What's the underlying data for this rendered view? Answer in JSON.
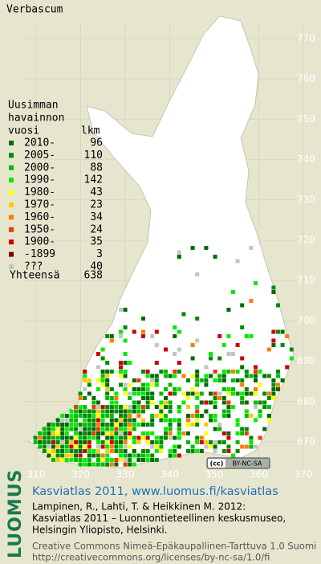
{
  "title": "Verbascum",
  "legend": {
    "heading": [
      "Uusimman",
      "havainnon",
      "vuosi"
    ],
    "count_header": "lkm",
    "items": [
      {
        "label": "2010-",
        "count": "96",
        "color": "#006a00"
      },
      {
        "label": "2005-",
        "count": "110",
        "color": "#008c00"
      },
      {
        "label": "2000-",
        "count": "88",
        "color": "#00bc00"
      },
      {
        "label": "1990-",
        "count": "142",
        "color": "#00ec00"
      },
      {
        "label": "1980-",
        "count": "43",
        "color": "#ffff00"
      },
      {
        "label": "1970-",
        "count": "23",
        "color": "#ffc800"
      },
      {
        "label": "1960-",
        "count": "34",
        "color": "#ff7c00"
      },
      {
        "label": "1950-",
        "count": "24",
        "color": "#e83c00"
      },
      {
        "label": "1900-",
        "count": "35",
        "color": "#cc0000"
      },
      {
        "label": "-1899",
        "count": "3",
        "color": "#7c0000"
      },
      {
        "label": "???",
        "count": "40",
        "color": "#c4c4c4"
      }
    ],
    "total_label": "Yhteensä",
    "total": "638"
  },
  "grid": {
    "x_labels": [
      "310",
      "320",
      "330",
      "340",
      "350",
      "360",
      "370"
    ],
    "y_labels": [
      "770",
      "760",
      "750",
      "740",
      "730",
      "720",
      "710",
      "700",
      "690",
      "680",
      "670"
    ]
  },
  "license_badge": "BY-NC-SA",
  "footer": {
    "brand": "LUOMUS",
    "link": "Kasviatlas 2011, www.luomus.fi/kasviatlas",
    "citation": [
      "Lampinen, R., Lahti, T. & Heikkinen M. 2012:",
      "Kasviatlas 2011 – Luonnontieteellinen keskusmuseo,",
      "Helsingin Yliopisto, Helsinki."
    ],
    "license": [
      "Creative Commons Nimeä-Epäkaupallinen-Tarttuva 1.0 Suomi",
      "http://creativecommons.org/licenses/by-nc-sa/1.0/fi"
    ]
  }
}
